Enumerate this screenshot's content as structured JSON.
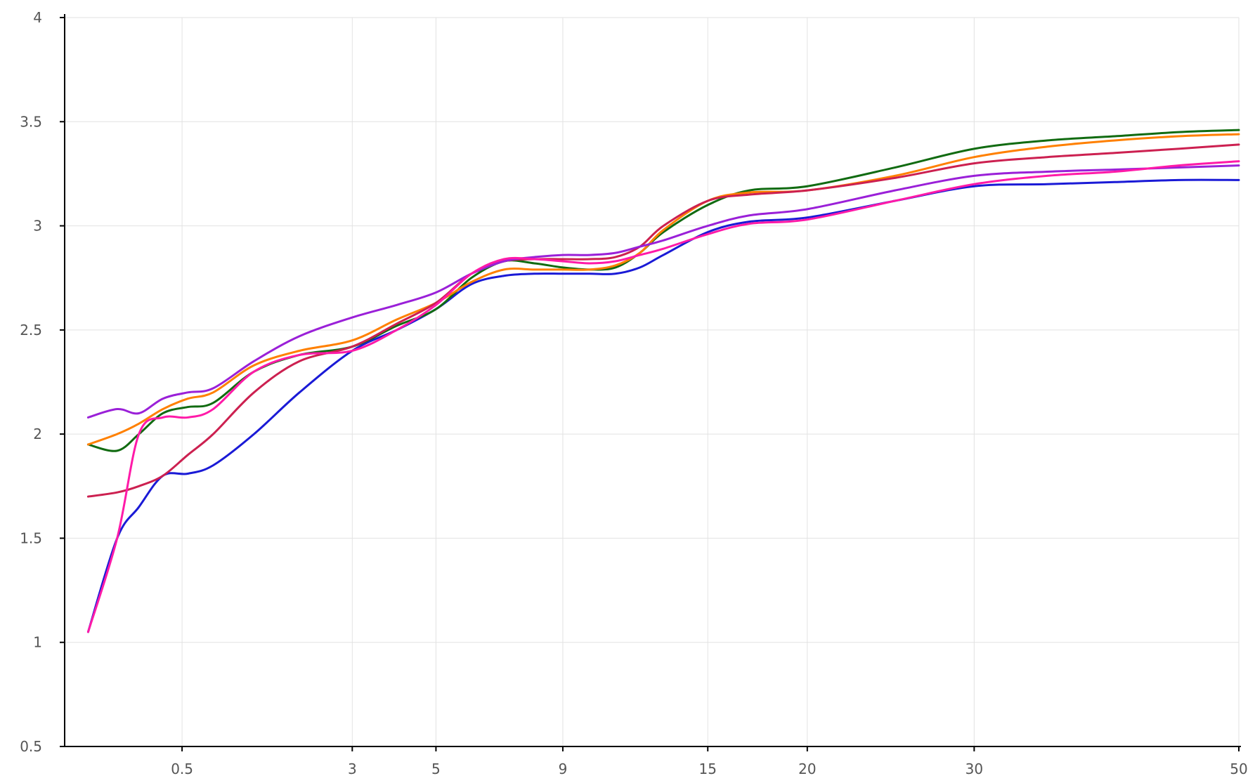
{
  "chart_data": {
    "type": "line",
    "title": "",
    "xlabel": "",
    "ylabel": "",
    "x_scale": "sqrt",
    "xlim": [
      0,
      50
    ],
    "ylim": [
      0.5,
      4
    ],
    "x_ticks": [
      0.5,
      3,
      5,
      9,
      15,
      20,
      30,
      50
    ],
    "x_tick_labels": [
      "0.5",
      "3",
      "5",
      "9",
      "15",
      "20",
      "30",
      "50"
    ],
    "y_ticks": [
      0.5,
      1,
      1.5,
      2,
      2.5,
      3,
      3.5,
      4
    ],
    "y_tick_labels": [
      "0.5",
      "1",
      "1.5",
      "2",
      "2.5",
      "3",
      "3.5",
      "4"
    ],
    "grid": true,
    "legend": "none",
    "series": [
      {
        "color": "#1a1ad6",
        "x": [
          0.02,
          0.1,
          0.2,
          0.35,
          0.55,
          0.8,
          1.3,
          2.0,
          3.0,
          4.0,
          5.0,
          6.0,
          7.0,
          8.0,
          9.0,
          10.0,
          11.0,
          12.0,
          13.0,
          15.0,
          17.0,
          20.0,
          25.0,
          30.0,
          35.0,
          40.0,
          45.0,
          50.0
        ],
        "values": [
          1.05,
          1.5,
          1.65,
          1.8,
          1.81,
          1.85,
          2.0,
          2.2,
          2.4,
          2.5,
          2.6,
          2.72,
          2.76,
          2.77,
          2.77,
          2.77,
          2.77,
          2.8,
          2.86,
          2.97,
          3.02,
          3.04,
          3.12,
          3.19,
          3.2,
          3.21,
          3.22,
          3.22
        ]
      },
      {
        "color": "#116b11",
        "x": [
          0.02,
          0.1,
          0.2,
          0.35,
          0.55,
          0.8,
          1.3,
          2.0,
          3.0,
          4.0,
          5.0,
          6.0,
          7.0,
          8.0,
          9.0,
          10.0,
          11.0,
          12.0,
          13.0,
          15.0,
          17.0,
          20.0,
          25.0,
          30.0,
          35.0,
          40.0,
          45.0,
          50.0
        ],
        "values": [
          1.95,
          1.92,
          2.0,
          2.1,
          2.13,
          2.15,
          2.3,
          2.38,
          2.42,
          2.52,
          2.6,
          2.75,
          2.83,
          2.82,
          2.8,
          2.79,
          2.8,
          2.87,
          2.97,
          3.1,
          3.17,
          3.19,
          3.28,
          3.37,
          3.41,
          3.43,
          3.45,
          3.46
        ]
      },
      {
        "color": "#ff8000",
        "x": [
          0.02,
          0.1,
          0.2,
          0.35,
          0.55,
          0.8,
          1.3,
          2.0,
          3.0,
          4.0,
          5.0,
          6.0,
          7.0,
          8.0,
          9.0,
          10.0,
          11.0,
          12.0,
          13.0,
          15.0,
          17.0,
          20.0,
          25.0,
          30.0,
          35.0,
          40.0,
          45.0,
          50.0
        ],
        "values": [
          1.95,
          2.0,
          2.05,
          2.12,
          2.17,
          2.2,
          2.33,
          2.4,
          2.45,
          2.55,
          2.63,
          2.73,
          2.79,
          2.79,
          2.79,
          2.79,
          2.81,
          2.87,
          2.98,
          3.12,
          3.16,
          3.17,
          3.24,
          3.33,
          3.38,
          3.41,
          3.43,
          3.44
        ]
      },
      {
        "color": "#cc2050",
        "x": [
          0.02,
          0.1,
          0.2,
          0.35,
          0.55,
          0.8,
          1.3,
          2.0,
          3.0,
          4.0,
          5.0,
          6.0,
          7.0,
          8.0,
          9.0,
          10.0,
          11.0,
          12.0,
          13.0,
          15.0,
          17.0,
          20.0,
          25.0,
          30.0,
          35.0,
          40.0,
          45.0,
          50.0
        ],
        "values": [
          1.7,
          1.72,
          1.75,
          1.8,
          1.9,
          2.0,
          2.2,
          2.35,
          2.42,
          2.53,
          2.63,
          2.77,
          2.83,
          2.84,
          2.84,
          2.84,
          2.85,
          2.9,
          3.0,
          3.12,
          3.15,
          3.17,
          3.23,
          3.3,
          3.33,
          3.35,
          3.37,
          3.39
        ]
      },
      {
        "color": "#9a20d8",
        "x": [
          0.02,
          0.1,
          0.2,
          0.35,
          0.55,
          0.8,
          1.3,
          2.0,
          3.0,
          4.0,
          5.0,
          6.0,
          7.0,
          8.0,
          9.0,
          10.0,
          11.0,
          12.0,
          13.0,
          15.0,
          17.0,
          20.0,
          25.0,
          30.0,
          35.0,
          40.0,
          45.0,
          50.0
        ],
        "values": [
          2.08,
          2.12,
          2.1,
          2.17,
          2.2,
          2.22,
          2.35,
          2.47,
          2.56,
          2.62,
          2.68,
          2.77,
          2.83,
          2.85,
          2.86,
          2.86,
          2.87,
          2.9,
          2.93,
          3.0,
          3.05,
          3.08,
          3.17,
          3.24,
          3.26,
          3.27,
          3.28,
          3.29
        ]
      },
      {
        "color": "#ff1aa8",
        "x": [
          0.02,
          0.1,
          0.2,
          0.35,
          0.55,
          0.8,
          1.3,
          2.0,
          3.0,
          4.0,
          5.0,
          6.0,
          7.0,
          8.0,
          9.0,
          10.0,
          11.0,
          12.0,
          13.0,
          15.0,
          17.0,
          20.0,
          25.0,
          30.0,
          35.0,
          40.0,
          45.0,
          50.0
        ],
        "values": [
          1.05,
          1.5,
          2.0,
          2.08,
          2.08,
          2.12,
          2.3,
          2.38,
          2.4,
          2.5,
          2.62,
          2.77,
          2.84,
          2.84,
          2.83,
          2.82,
          2.83,
          2.86,
          2.89,
          2.96,
          3.01,
          3.03,
          3.12,
          3.2,
          3.24,
          3.26,
          3.29,
          3.31
        ]
      }
    ]
  }
}
